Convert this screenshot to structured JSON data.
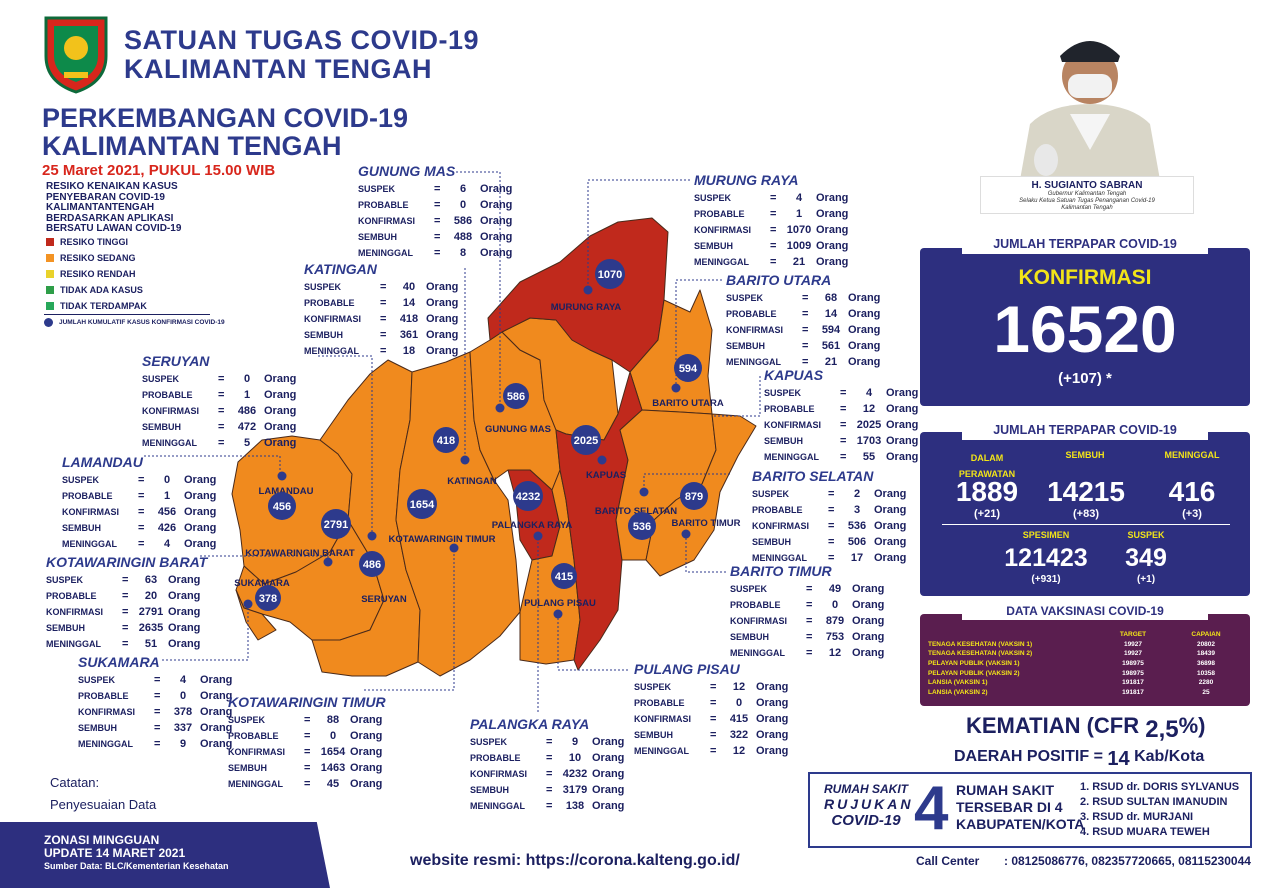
{
  "header": {
    "org_line1": "SATUAN TUGAS COVID-19",
    "org_line2": "KALIMANTAN TENGAH",
    "title_line1": "PERKEMBANGAN COVID-19",
    "title_line2": "KALIMANTAN TENGAH",
    "date": "25 Maret 2021, PUKUL 15.00 WIB"
  },
  "risk": {
    "title": "RESIKO KENAIKAN KASUS PENYEBARAN COVID-19 KALIMANTANTENGAH BERDASARKAN APLIKASI BERSATU LAWAN COVID-19",
    "legend": [
      {
        "label": "RESIKO TINGGI",
        "color": "#c0291c"
      },
      {
        "label": "RESIKO SEDANG",
        "color": "#f39324"
      },
      {
        "label": "RESIKO RENDAH",
        "color": "#e9d22a"
      },
      {
        "label": "TIDAK ADA KASUS",
        "color": "#2e9e48"
      },
      {
        "label": "TIDAK TERDAMPAK",
        "color": "#27a85a"
      }
    ],
    "note": "JUMLAH KUMULATIF KASUS KONFIRMASI COVID-19"
  },
  "labels": {
    "suspek": "SUSPEK",
    "probable": "PROBABLE",
    "konfirmasi": "KONFIRMASI",
    "sembuh": "SEMBUH",
    "meninggal": "MENINGGAL",
    "eq": "=",
    "unit": "Orang"
  },
  "regions": {
    "gunung_mas": {
      "name": "GUNUNG MAS",
      "suspek": "6",
      "probable": "0",
      "konfirmasi": "586",
      "sembuh": "488",
      "meninggal": "8"
    },
    "katingan": {
      "name": "KATINGAN",
      "suspek": "40",
      "probable": "14",
      "konfirmasi": "418",
      "sembuh": "361",
      "meninggal": "18"
    },
    "seruyan": {
      "name": "SERUYAN",
      "suspek": "0",
      "probable": "1",
      "konfirmasi": "486",
      "sembuh": "472",
      "meninggal": "5"
    },
    "lamandau": {
      "name": "LAMANDAU",
      "suspek": "0",
      "probable": "1",
      "konfirmasi": "456",
      "sembuh": "426",
      "meninggal": "4"
    },
    "kobar": {
      "name": "KOTAWARINGIN BARAT",
      "suspek": "63",
      "probable": "20",
      "konfirmasi": "2791",
      "sembuh": "2635",
      "meninggal": "51"
    },
    "sukamara": {
      "name": "SUKAMARA",
      "suspek": "4",
      "probable": "0",
      "konfirmasi": "378",
      "sembuh": "337",
      "meninggal": "9"
    },
    "kotim": {
      "name": "KOTAWARINGIN TIMUR",
      "suspek": "88",
      "probable": "0",
      "konfirmasi": "1654",
      "sembuh": "1463",
      "meninggal": "45"
    },
    "palangka_raya": {
      "name": "PALANGKA RAYA",
      "suspek": "9",
      "probable": "10",
      "konfirmasi": "4232",
      "sembuh": "3179",
      "meninggal": "138"
    },
    "pulang_pisau": {
      "name": "PULANG PISAU",
      "suspek": "12",
      "probable": "0",
      "konfirmasi": "415",
      "sembuh": "322",
      "meninggal": "12"
    },
    "barito_timur": {
      "name": "BARITO TIMUR",
      "suspek": "49",
      "probable": "0",
      "konfirmasi": "879",
      "sembuh": "753",
      "meninggal": "12"
    },
    "barito_selatan": {
      "name": "BARITO SELATAN",
      "suspek": "2",
      "probable": "3",
      "konfirmasi": "536",
      "sembuh": "506",
      "meninggal": "17"
    },
    "kapuas": {
      "name": "KAPUAS",
      "suspek": "4",
      "probable": "12",
      "konfirmasi": "2025",
      "sembuh": "1703",
      "meninggal": "55"
    },
    "barito_utara": {
      "name": "BARITO UTARA",
      "suspek": "68",
      "probable": "14",
      "konfirmasi": "594",
      "sembuh": "561",
      "meninggal": "21"
    },
    "murung_raya": {
      "name": "MURUNG RAYA",
      "suspek": "4",
      "probable": "1",
      "konfirmasi": "1070",
      "sembuh": "1009",
      "meninggal": "21"
    }
  },
  "map": {
    "murung_raya": "MURUNG RAYA",
    "barito_utara": "BARITO UTARA",
    "gunung_mas": "GUNUNG MAS",
    "kapuas": "KAPUAS",
    "katingan": "KATINGAN",
    "lamandau": "LAMANDAU",
    "palangka_raya": "PALANGKA RAYA",
    "barito_selatan": "BARITO SELATAN",
    "barito_timur": "BARITO TIMUR",
    "kobar": "KOTAWARINGIN BARAT",
    "kotim": "KOTAWARINGIN TIMUR",
    "sukamara": "SUKAMARA",
    "seruyan": "SERUYAN",
    "pulang_pisau": "PULANG PISAU",
    "bubbles": {
      "b1070": "1070",
      "b594": "594",
      "b586": "586",
      "b2025": "2025",
      "b418": "418",
      "b4232": "4232",
      "b879": "879",
      "b536": "536",
      "b456": "456",
      "b2791": "2791",
      "b1654": "1654",
      "b486": "486",
      "b415": "415",
      "b378": "378"
    }
  },
  "governor": {
    "name": "H. SUGIANTO SABRAN",
    "title1": "Gubernur Kalimantan Tengah",
    "title2": "Selaku Ketua Satuan Tugas Penanganan Covid-19",
    "title3": "Kalimantan Tengah"
  },
  "summary": {
    "tag": "JUMLAH TERPAPAR COVID-19",
    "konf_label": "KONFIRMASI",
    "konf_value": "16520",
    "konf_delta": "(+107)",
    "star": "*"
  },
  "detail": {
    "tag": "JUMLAH TERPAPAR COVID-19",
    "rawat_l1": "DALAM",
    "rawat_l2": "PERAWATAN",
    "rawat": "1889",
    "rawat_d": "(+21)",
    "sembuh_l": "SEMBUH",
    "sembuh": "14215",
    "sembuh_d": "(+83)",
    "mati_l": "MENINGGAL",
    "mati": "416",
    "mati_d": "(+3)",
    "spesimen_l": "SPESIMEN",
    "spesimen": "121423",
    "spesimen_d": "(+931)",
    "suspek_l": "SUSPEK",
    "suspek": "349",
    "suspek_d": "(+1)"
  },
  "vaksin": {
    "tag": "DATA VAKSINASI COVID-19",
    "h_target": "TARGET",
    "h_capaian": "CAPAIAN",
    "rows": [
      {
        "label": "TENAGA KESEHATAN (VAKSIN 1)",
        "target": "19927",
        "capaian": "20802"
      },
      {
        "label": "TENAGA KESEHATAN (VAKSIN 2)",
        "target": "19927",
        "capaian": "18439"
      },
      {
        "label": "PELAYAN PUBLIK (VAKSIN 1)",
        "target": "198975",
        "capaian": "36898"
      },
      {
        "label": "PELAYAN PUBLIK (VAKSIN 2)",
        "target": "198975",
        "capaian": "10358"
      },
      {
        "label": "LANSIA (VAKSIN 1)",
        "target": "191817",
        "capaian": "2280"
      },
      {
        "label": "LANSIA (VAKSIN 2)",
        "target": "191817",
        "capaian": "25"
      }
    ]
  },
  "kematian": {
    "label": "KEMATIAN (CFR",
    "value": "2,5",
    "pct": "%)",
    "daerah": "DAERAH POSITIF =",
    "daerah_n": "14",
    "daerah_u": "Kab/Kota"
  },
  "rs": {
    "l1": "RUMAH SAKIT",
    "l2": "RUJUKAN",
    "l3": "COVID-19",
    "num": "4",
    "m1": "RUMAH SAKIT",
    "m2": "TERSEBAR DI 4",
    "m3": "KABUPATEN/KOTA",
    "list": [
      "1. RSUD dr. DORIS SYLVANUS",
      "2. RSUD SULTAN IMANUDIN",
      "3. RSUD dr. MURJANI",
      "4. RSUD MUARA TEWEH"
    ]
  },
  "catatan": {
    "l1": "Catatan:",
    "l2": "Penyesuaian Data"
  },
  "footer": {
    "zonasi": "ZONASI MINGGUAN",
    "update": "UPDATE 14 MARET 2021",
    "sumber": "Sumber Data: BLC/Kementerian Kesehatan",
    "web_label": "website resmi:",
    "web_url": "https://corona.kalteng.go.id/",
    "cc_label": "Call Center",
    "cc_nums": ": 08125086776, 082357720665, 08115230044"
  }
}
